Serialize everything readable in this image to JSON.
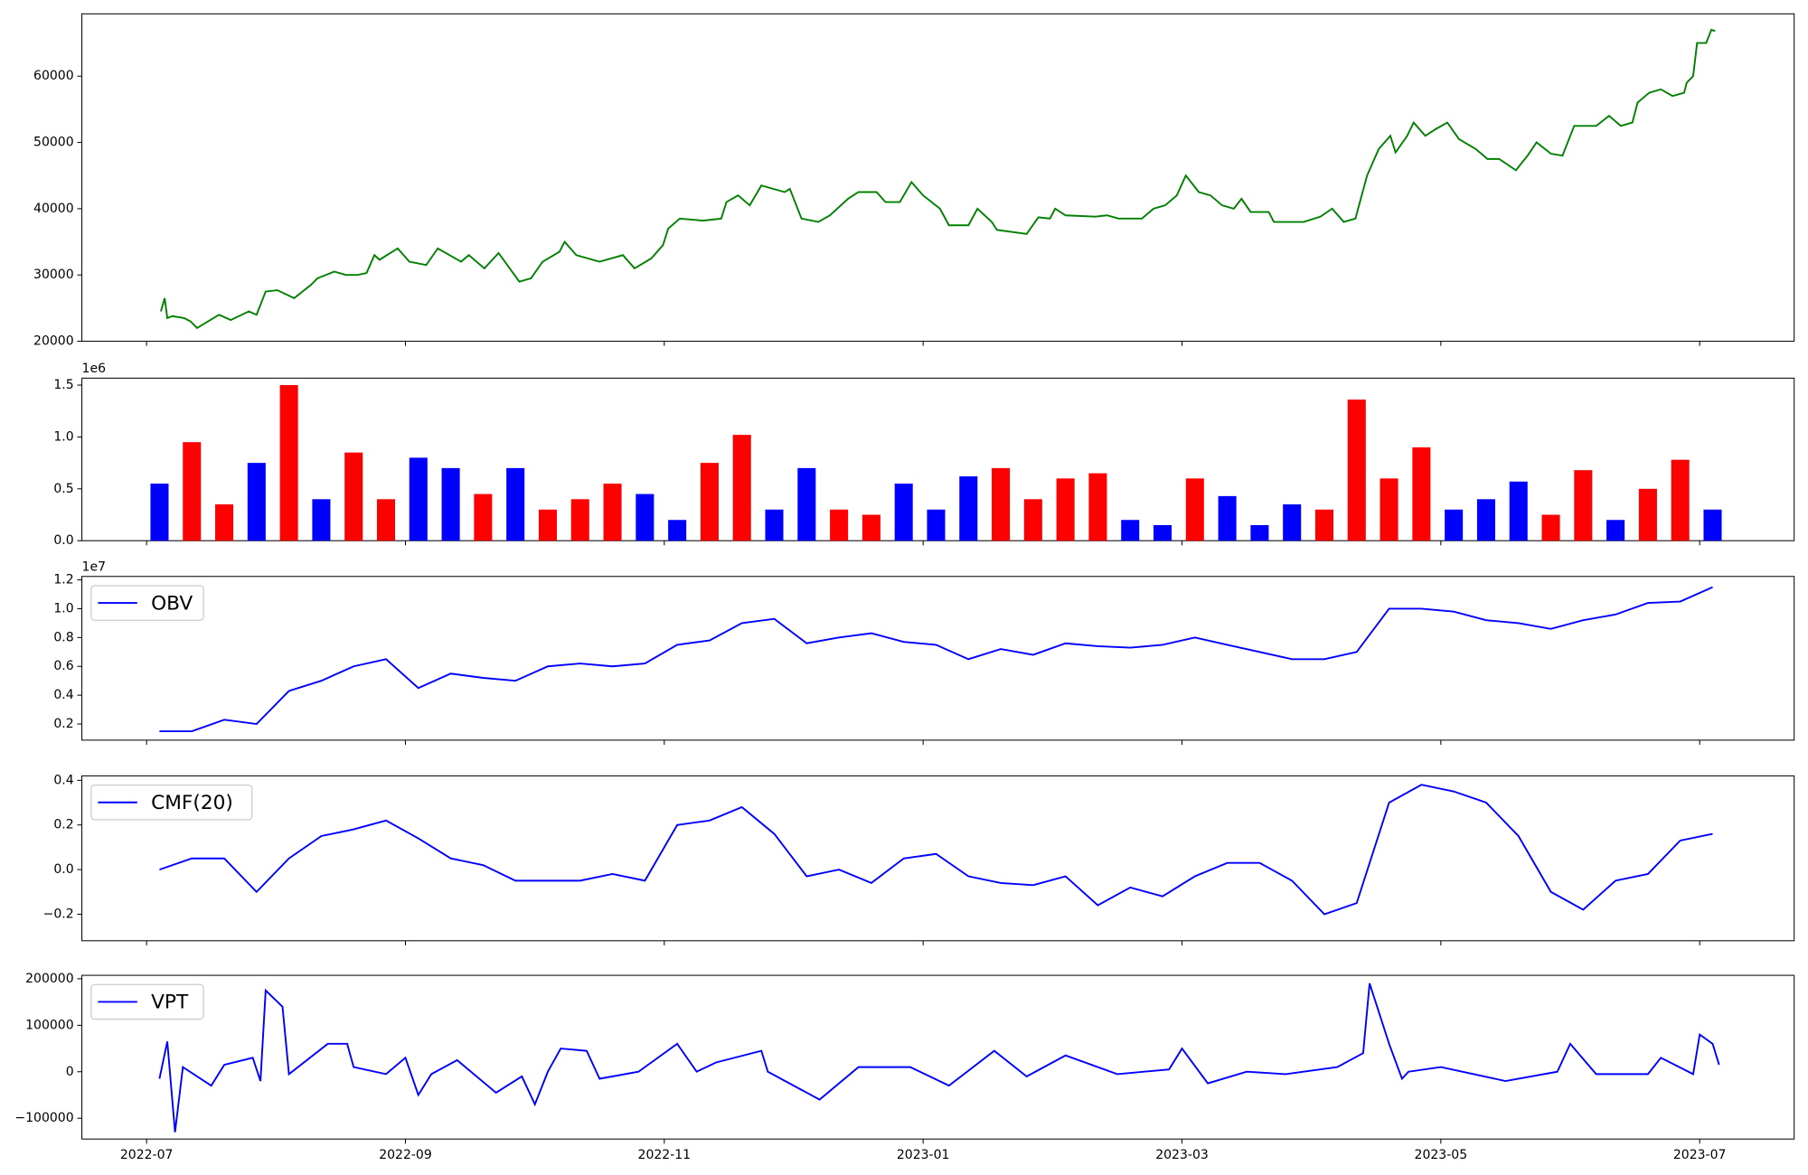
{
  "chart_data": [
    {
      "type": "line",
      "color": "green",
      "x": [
        0.11,
        0.14,
        0.16,
        0.2,
        0.29,
        0.34,
        0.39,
        0.56,
        0.65,
        0.79,
        0.85,
        0.92,
        1.01,
        1.14,
        1.27,
        1.32,
        1.45,
        1.54,
        1.63,
        1.7,
        1.76,
        1.8,
        1.94,
        2.03,
        2.16,
        2.25,
        2.43,
        2.49,
        2.61,
        2.72,
        2.88,
        2.97,
        3.06,
        3.19,
        3.23,
        3.32,
        3.5,
        3.68,
        3.77,
        3.9,
        3.99,
        4.03,
        4.12,
        4.3,
        4.44,
        4.48,
        4.57,
        4.66,
        4.75,
        4.93,
        4.97,
        5.06,
        5.19,
        5.28,
        5.42,
        5.5,
        5.64,
        5.71,
        5.82,
        5.91,
        6.0,
        6.13,
        6.2,
        6.35,
        6.42,
        6.53,
        6.57,
        6.8,
        6.89,
        6.98,
        7.02,
        7.1,
        7.33,
        7.42,
        7.51,
        7.6,
        7.69,
        7.78,
        7.87,
        7.96,
        8.03,
        8.13,
        8.22,
        8.31,
        8.4,
        8.46,
        8.53,
        8.67,
        8.71,
        8.85,
        8.94,
        9.07,
        9.16,
        9.25,
        9.34,
        9.43,
        9.52,
        9.61,
        9.65,
        9.74,
        9.79,
        9.88,
        9.96,
        10.05,
        10.14,
        10.27,
        10.36,
        10.45,
        10.58,
        10.67,
        10.74,
        10.85,
        10.94,
        11.03,
        11.2,
        11.3,
        11.39,
        11.48,
        11.52,
        11.61,
        11.7,
        11.79,
        11.88,
        11.9,
        11.95,
        11.98,
        12.05,
        12.09,
        12.12
      ],
      "values": [
        24500,
        26500,
        23500,
        23800,
        23500,
        23000,
        22000,
        24000,
        23200,
        24500,
        24000,
        27500,
        27700,
        26500,
        28500,
        29500,
        30500,
        30000,
        30000,
        30300,
        33000,
        32300,
        34000,
        32000,
        31500,
        34000,
        32000,
        33000,
        31000,
        33300,
        29000,
        29500,
        32000,
        33500,
        35000,
        33000,
        32000,
        33000,
        31000,
        32500,
        34500,
        37000,
        38500,
        38200,
        38500,
        41000,
        42000,
        40500,
        43500,
        42500,
        43000,
        38500,
        38000,
        39000,
        41500,
        42500,
        42500,
        41000,
        41000,
        44000,
        42000,
        40000,
        37500,
        37500,
        40000,
        38000,
        36800,
        36200,
        38700,
        38500,
        40000,
        39000,
        38800,
        39000,
        38500,
        38500,
        38500,
        40000,
        40500,
        42000,
        45000,
        42500,
        42000,
        40500,
        40000,
        41500,
        39500,
        39500,
        38000,
        38000,
        38000,
        38800,
        40000,
        38000,
        38500,
        45000,
        49000,
        51000,
        48500,
        51000,
        53000,
        51000,
        52000,
        53000,
        50500,
        49000,
        47500,
        47500,
        45800,
        48000,
        50000,
        48300,
        48000,
        52500,
        52500,
        54000,
        52500,
        53000,
        56000,
        57500,
        58000,
        57000,
        57500,
        59000,
        60000,
        65000,
        65000,
        67000,
        66800
      ],
      "xlim": [
        -0.5,
        12.73
      ],
      "ylim": [
        20000,
        69400
      ],
      "yticks": [
        20000,
        30000,
        40000,
        50000,
        60000
      ]
    },
    {
      "type": "bar",
      "y_offset_text": "1e6",
      "x": [
        0.1,
        0.35,
        0.6,
        0.85,
        1.1,
        1.35,
        1.6,
        1.85,
        2.1,
        2.35,
        2.6,
        2.85,
        3.1,
        3.35,
        3.6,
        3.85,
        4.1,
        4.35,
        4.6,
        4.85,
        5.1,
        5.35,
        5.6,
        5.85,
        6.1,
        6.35,
        6.6,
        6.85,
        7.1,
        7.35,
        7.6,
        7.85,
        8.1,
        8.35,
        8.6,
        8.85,
        9.1,
        9.35,
        9.6,
        9.85,
        10.1,
        10.35,
        10.6,
        10.85,
        11.1,
        11.35,
        11.6,
        11.85,
        12.1
      ],
      "values": [
        550000,
        950000,
        350000,
        750000,
        1500000,
        400000,
        850000,
        400000,
        800000,
        700000,
        450000,
        700000,
        300000,
        400000,
        550000,
        450000,
        200000,
        750000,
        1020000,
        300000,
        700000,
        300000,
        250000,
        550000,
        300000,
        620000,
        700000,
        400000,
        600000,
        650000,
        200000,
        150000,
        600000,
        430000,
        150000,
        350000,
        300000,
        1360000,
        600000,
        900000,
        300000,
        400000,
        570000,
        250000,
        680000,
        200000,
        500000,
        780000,
        300000
      ],
      "colors": [
        "blue",
        "red",
        "red",
        "blue",
        "red",
        "blue",
        "red",
        "red",
        "blue",
        "blue",
        "red",
        "blue",
        "red",
        "red",
        "red",
        "blue",
        "blue",
        "red",
        "red",
        "blue",
        "blue",
        "red",
        "red",
        "blue",
        "blue",
        "blue",
        "red",
        "red",
        "red",
        "red",
        "blue",
        "blue",
        "red",
        "blue",
        "blue",
        "blue",
        "red",
        "red",
        "red",
        "red",
        "blue",
        "blue",
        "blue",
        "red",
        "red",
        "blue",
        "red",
        "red",
        "blue"
      ],
      "xlim": [
        -0.5,
        12.73
      ],
      "ylim": [
        0,
        1567000
      ],
      "yticks": [
        {
          "value": 0,
          "label": "0.0"
        },
        {
          "value": 500000,
          "label": "0.5"
        },
        {
          "value": 1000000,
          "label": "1.0"
        },
        {
          "value": 1500000,
          "label": "1.5"
        }
      ]
    },
    {
      "type": "line",
      "y_offset_text": "1e7",
      "x": [
        0.1,
        0.35,
        0.6,
        0.85,
        1.1,
        1.35,
        1.6,
        1.85,
        2.1,
        2.35,
        2.6,
        2.85,
        3.1,
        3.35,
        3.6,
        3.85,
        4.1,
        4.35,
        4.6,
        4.85,
        5.1,
        5.35,
        5.6,
        5.85,
        6.1,
        6.35,
        6.6,
        6.85,
        7.1,
        7.35,
        7.6,
        7.85,
        8.1,
        8.35,
        8.6,
        8.85,
        9.1,
        9.35,
        9.6,
        9.85,
        10.1,
        10.35,
        10.6,
        10.85,
        11.1,
        11.35,
        11.6,
        11.85,
        12.1
      ],
      "series": [
        {
          "name": "OBV",
          "color": "blue",
          "values": [
            1500000,
            1500000,
            2300000,
            2000000,
            4300000,
            5000000,
            6000000,
            6500000,
            4500000,
            5500000,
            5200000,
            5000000,
            6000000,
            6200000,
            6000000,
            6200000,
            7500000,
            7800000,
            9000000,
            9300000,
            7600000,
            8000000,
            8300000,
            7700000,
            7500000,
            6500000,
            7200000,
            6800000,
            7600000,
            7400000,
            7300000,
            7500000,
            8000000,
            7500000,
            7000000,
            6500000,
            6500000,
            7000000,
            10000000,
            10000000,
            9800000,
            9200000,
            9000000,
            8600000,
            9200000,
            9600000,
            10400000,
            10500000,
            11500000
          ]
        }
      ],
      "xlim": [
        -0.5,
        12.73
      ],
      "ylim": [
        880000,
        12240000
      ],
      "yticks": [
        {
          "value": 2000000,
          "label": "0.2"
        },
        {
          "value": 4000000,
          "label": "0.4"
        },
        {
          "value": 6000000,
          "label": "0.6"
        },
        {
          "value": 8000000,
          "label": "0.8"
        },
        {
          "value": 10000000,
          "label": "1.0"
        },
        {
          "value": 12000000,
          "label": "1.2"
        }
      ]
    },
    {
      "type": "line",
      "x": [
        0.1,
        0.35,
        0.6,
        0.85,
        1.1,
        1.35,
        1.6,
        1.85,
        2.1,
        2.35,
        2.6,
        2.85,
        3.1,
        3.35,
        3.6,
        3.85,
        4.1,
        4.35,
        4.6,
        4.85,
        5.1,
        5.35,
        5.6,
        5.85,
        6.1,
        6.35,
        6.6,
        6.85,
        7.1,
        7.35,
        7.6,
        7.85,
        8.1,
        8.35,
        8.6,
        8.85,
        9.1,
        9.35,
        9.6,
        9.85,
        10.1,
        10.35,
        10.6,
        10.85,
        11.1,
        11.35,
        11.6,
        11.85,
        12.1
      ],
      "series": [
        {
          "name": "CMF(20)",
          "color": "blue",
          "values": [
            0.0,
            0.05,
            0.05,
            -0.1,
            0.05,
            0.15,
            0.18,
            0.22,
            0.14,
            0.05,
            0.02,
            -0.05,
            -0.05,
            -0.05,
            -0.02,
            -0.05,
            0.2,
            0.22,
            0.28,
            0.16,
            -0.03,
            0.0,
            -0.06,
            0.05,
            0.07,
            -0.03,
            -0.06,
            -0.07,
            -0.03,
            -0.16,
            -0.08,
            -0.12,
            -0.03,
            0.03,
            0.03,
            -0.05,
            -0.2,
            -0.15,
            0.3,
            0.38,
            0.35,
            0.3,
            0.15,
            -0.1,
            -0.18,
            -0.05,
            -0.02,
            0.13,
            0.16
          ]
        }
      ],
      "xlim": [
        -0.5,
        12.73
      ],
      "ylim": [
        -0.319,
        0.42
      ],
      "yticks": [
        {
          "value": -0.2,
          "label": "−0.2"
        },
        {
          "value": 0,
          "label": "0.0"
        },
        0.2,
        0.4
      ]
    },
    {
      "type": "line",
      "x": [
        0.1,
        0.16,
        0.22,
        0.28,
        0.5,
        0.6,
        0.82,
        0.88,
        0.92,
        1.05,
        1.1,
        1.4,
        1.55,
        1.6,
        1.85,
        2.0,
        2.1,
        2.2,
        2.4,
        2.7,
        2.9,
        3.0,
        3.1,
        3.2,
        3.4,
        3.5,
        3.8,
        4.1,
        4.25,
        4.4,
        4.75,
        4.8,
        5.2,
        5.5,
        5.9,
        6.2,
        6.55,
        6.8,
        7.1,
        7.5,
        7.9,
        8.0,
        8.2,
        8.5,
        8.8,
        9.2,
        9.4,
        9.45,
        9.6,
        9.7,
        9.75,
        10.0,
        10.5,
        10.9,
        11.0,
        11.2,
        11.6,
        11.7,
        11.95,
        12.0,
        12.1,
        12.15
      ],
      "series": [
        {
          "name": "VPT",
          "color": "blue",
          "values": [
            -15000,
            65000,
            -130000,
            10000,
            -30000,
            15000,
            30000,
            -20000,
            175000,
            140000,
            -5000,
            60000,
            60000,
            10000,
            -5000,
            30000,
            -50000,
            -5000,
            25000,
            -45000,
            -10000,
            -70000,
            0,
            50000,
            45000,
            -15000,
            0,
            60000,
            0,
            20000,
            45000,
            0,
            -60000,
            10000,
            10000,
            -30000,
            45000,
            -10000,
            35000,
            -5000,
            5000,
            50000,
            -25000,
            0,
            -5000,
            10000,
            40000,
            190000,
            60000,
            -15000,
            0,
            10000,
            -20000,
            0,
            60000,
            -5000,
            -5000,
            30000,
            -5000,
            80000,
            60000,
            15000
          ]
        }
      ],
      "xlim": [
        -0.5,
        12.73
      ],
      "ylim": [
        -144700,
        207400
      ],
      "yticks": [
        {
          "value": -100000,
          "label": "−100000"
        },
        0,
        100000,
        200000
      ],
      "xticks": [
        {
          "value": 0,
          "label": "2022-07"
        },
        {
          "value": 2,
          "label": "2022-09"
        },
        {
          "value": 4,
          "label": "2022-11"
        },
        {
          "value": 6,
          "label": "2023-01"
        },
        {
          "value": 8,
          "label": "2023-03"
        },
        {
          "value": 10,
          "label": "2023-05"
        },
        {
          "value": 12,
          "label": "2023-07"
        }
      ]
    }
  ]
}
